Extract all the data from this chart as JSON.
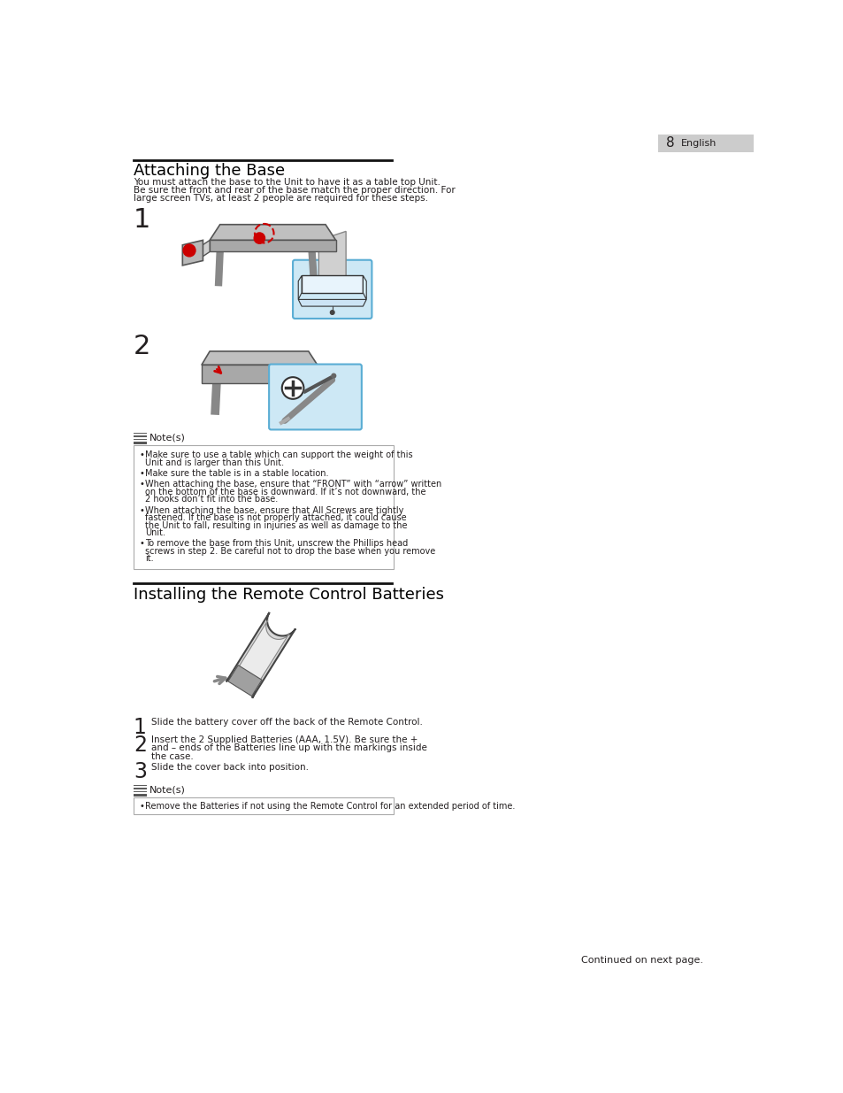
{
  "page_number": "8",
  "page_lang": "English",
  "section1_title": "Attaching the Base",
  "section1_body_lines": [
    "You must attach the base to the Unit to have it as a table top Unit.",
    "Be sure the front and rear of the base match the proper direction. For",
    "large screen TVs, at least 2 people are required for these steps."
  ],
  "step1_label": "1",
  "step2_label": "2",
  "notes_title": "Note(s)",
  "notes": [
    "Make sure to use a table which can support the weight of this Unit and is larger than this Unit.",
    "Make sure the table is in a stable location.",
    "When attaching the base, ensure that “FRONT” with “arrow” written on the bottom of the base is downward. If it’s not downward, the 2 hooks don’t fit into the base.",
    "When attaching the base, ensure that All Screws are tightly fastened. If the base is not properly attached, it could cause the Unit to fall, resulting in injuries as well as damage to the Unit.",
    "To remove the base from this Unit, unscrew the Phillips head screws in step 2. Be careful not to drop the base when you remove it."
  ],
  "section2_title": "Installing the Remote Control Batteries",
  "rc_steps": [
    "Slide the battery cover off the back of the Remote Control.",
    "Insert the 2 Supplied Batteries (AAA, 1.5V). Be sure the + and – ends of the Batteries line up with the markings inside the case.",
    "Slide the cover back into position."
  ],
  "notes2_title": "Note(s)",
  "note_rc1": "Remove the Batteries if not using the Remote Control for an extended period of time.",
  "continued": "Continued on next page.",
  "bg_color": "#ffffff",
  "text_color": "#231f20",
  "title_color": "#000000",
  "note_border": "#aaaaaa",
  "blue_box": "#cde8f5",
  "blue_box_border": "#5aadd4",
  "icon_bg": "#555555",
  "header_bg": "#cccccc"
}
